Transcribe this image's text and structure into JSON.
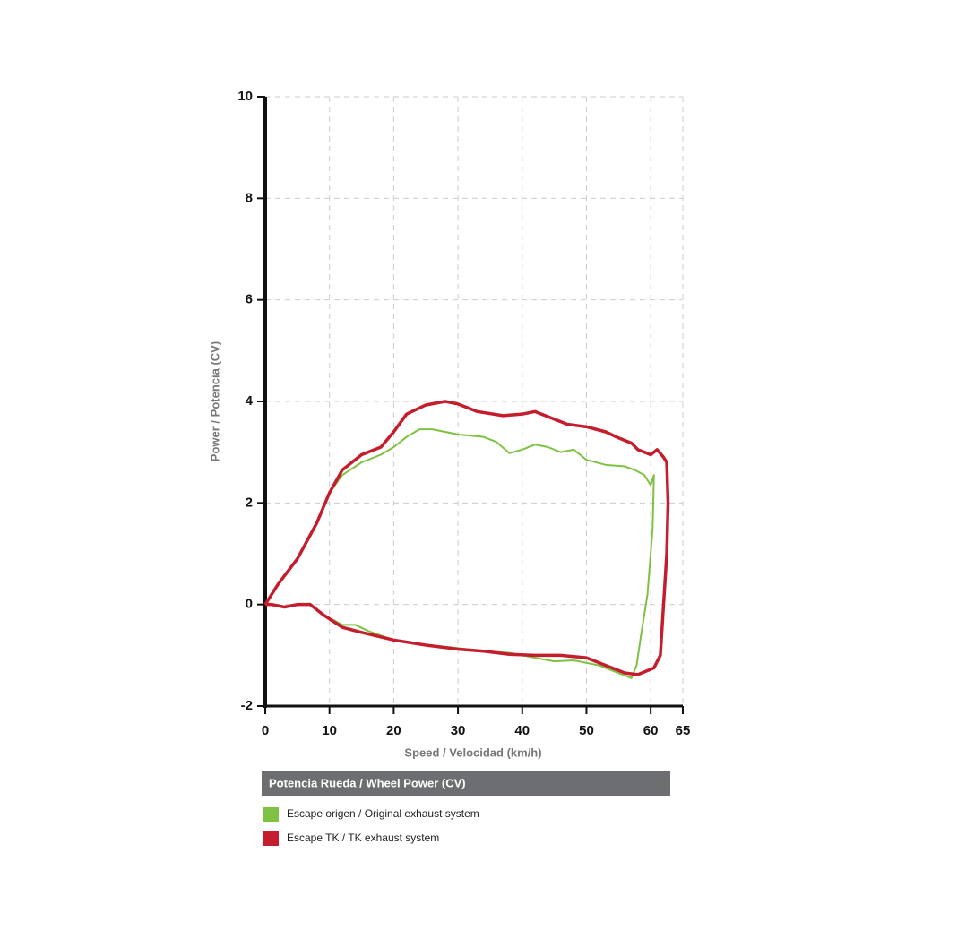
{
  "chart_data": {
    "type": "line",
    "x_label": "Speed / Velocidad (km/h)",
    "y_label": "Power / Potencia (CV)",
    "legend_title": "Potencia Rueda / Wheel Power (CV)",
    "xlim": [
      0,
      65
    ],
    "xticks": [
      0,
      10,
      20,
      30,
      40,
      50,
      60,
      65
    ],
    "ylim": [
      -2,
      10
    ],
    "yticks": [
      -2,
      0,
      2,
      4,
      6,
      8,
      10
    ],
    "grid": true,
    "series": [
      {
        "name": "Escape origen / Original exhaust system",
        "color": "#7dc242",
        "x": [
          0,
          2,
          5,
          8,
          10,
          12,
          15,
          18,
          20,
          22,
          24,
          26,
          30,
          34,
          36,
          38,
          40,
          42,
          44,
          46,
          48,
          50,
          53,
          56,
          57.5,
          59,
          60,
          60.5,
          60.3,
          59.5,
          58.5,
          57.8,
          57,
          55,
          52,
          48,
          45,
          42,
          38,
          34,
          28,
          24,
          20,
          16,
          14,
          12,
          9,
          7,
          5,
          3,
          1,
          0
        ],
        "values": [
          0,
          0.4,
          0.9,
          1.6,
          2.2,
          2.55,
          2.8,
          2.95,
          3.1,
          3.3,
          3.45,
          3.45,
          3.35,
          3.3,
          3.2,
          2.98,
          3.05,
          3.15,
          3.1,
          3.0,
          3.05,
          2.85,
          2.75,
          2.72,
          2.65,
          2.55,
          2.35,
          2.55,
          1.5,
          0.2,
          -0.6,
          -1.2,
          -1.45,
          -1.35,
          -1.2,
          -1.1,
          -1.12,
          -1.05,
          -0.95,
          -0.92,
          -0.83,
          -0.78,
          -0.7,
          -0.52,
          -0.4,
          -0.4,
          -0.2,
          0,
          0,
          -0.05,
          0,
          0
        ]
      },
      {
        "name": "Escape TK  / TK exhaust  system",
        "color": "#c41e2e",
        "x": [
          0,
          2,
          5,
          8,
          10,
          12,
          15,
          18,
          20,
          22,
          25,
          28,
          30,
          33,
          37,
          40,
          42,
          44,
          47,
          50,
          53,
          55,
          57,
          58,
          59,
          60,
          61,
          62,
          62.5,
          62.7,
          62.5,
          62,
          61.5,
          60.5,
          58,
          56,
          53,
          50,
          46,
          42,
          38,
          34,
          30,
          25,
          20,
          15,
          12,
          9,
          7,
          5,
          3,
          1,
          0
        ],
        "values": [
          0,
          0.4,
          0.9,
          1.6,
          2.2,
          2.65,
          2.95,
          3.1,
          3.4,
          3.75,
          3.93,
          4.0,
          3.95,
          3.8,
          3.72,
          3.75,
          3.8,
          3.7,
          3.55,
          3.5,
          3.4,
          3.28,
          3.18,
          3.05,
          3.0,
          2.95,
          3.05,
          2.9,
          2.8,
          2.0,
          1.0,
          0,
          -1.0,
          -1.25,
          -1.38,
          -1.35,
          -1.2,
          -1.05,
          -1.0,
          -1.0,
          -0.98,
          -0.92,
          -0.88,
          -0.8,
          -0.7,
          -0.55,
          -0.45,
          -0.2,
          0,
          0,
          -0.05,
          0,
          0
        ]
      }
    ]
  }
}
